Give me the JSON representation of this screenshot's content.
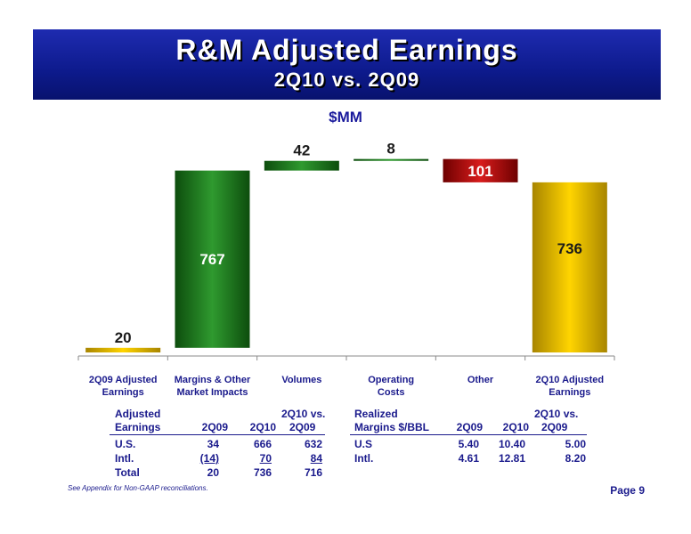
{
  "header": {
    "title": "R&M Adjusted Earnings",
    "subtitle": "2Q10 vs. 2Q09"
  },
  "chart_data": {
    "type": "bar",
    "subtype": "waterfall",
    "units_label": "$MM",
    "categories": [
      [
        "2Q09 Adjusted",
        "Earnings"
      ],
      [
        "Margins & Other",
        "Market Impacts"
      ],
      [
        "Volumes",
        ""
      ],
      [
        "Operating",
        "Costs"
      ],
      [
        "Other",
        ""
      ],
      [
        "2Q10 Adjusted",
        "Earnings"
      ]
    ],
    "steps": [
      {
        "kind": "total",
        "value": 20,
        "label": "20",
        "color": "#c9a400"
      },
      {
        "kind": "increase",
        "value": 767,
        "label": "767",
        "color": "#1f7a1f"
      },
      {
        "kind": "increase",
        "value": 42,
        "label": "42",
        "color": "#1f7a1f"
      },
      {
        "kind": "increase",
        "value": 8,
        "label": "8",
        "color": "#1f7a1f"
      },
      {
        "kind": "decrease",
        "value": -101,
        "label": "101",
        "color": "#b01010"
      },
      {
        "kind": "total",
        "value": 736,
        "label": "736",
        "color": "#f2c200"
      }
    ],
    "ylim": [
      0,
      900
    ],
    "grid": false,
    "legend": "none"
  },
  "table": {
    "left_header": [
      "Adjusted",
      "Earnings"
    ],
    "left_cols": [
      "2Q09",
      "2Q10",
      "2Q10 vs.",
      "2Q09"
    ],
    "left_rows": [
      {
        "label": "U.S.",
        "q09": "34",
        "q10": "666",
        "diff": "632"
      },
      {
        "label": "Intl.",
        "q09": "(14)",
        "q10": "70",
        "diff": "84"
      },
      {
        "label": "Total",
        "q09": "20",
        "q10": "736",
        "diff": "716"
      }
    ],
    "right_header": [
      "Realized",
      "Margins $/BBL"
    ],
    "right_cols": [
      "2Q09",
      "2Q10",
      "2Q10 vs.",
      "2Q09"
    ],
    "right_rows": [
      {
        "label": "U.S",
        "q09": "5.40",
        "q10": "10.40",
        "diff": "5.00"
      },
      {
        "label": "Intl.",
        "q09": "4.61",
        "q10": "12.81",
        "diff": "8.20"
      }
    ]
  },
  "footer": {
    "note": "See Appendix for Non-GAAP reconciliations.",
    "page": "Page 9"
  }
}
